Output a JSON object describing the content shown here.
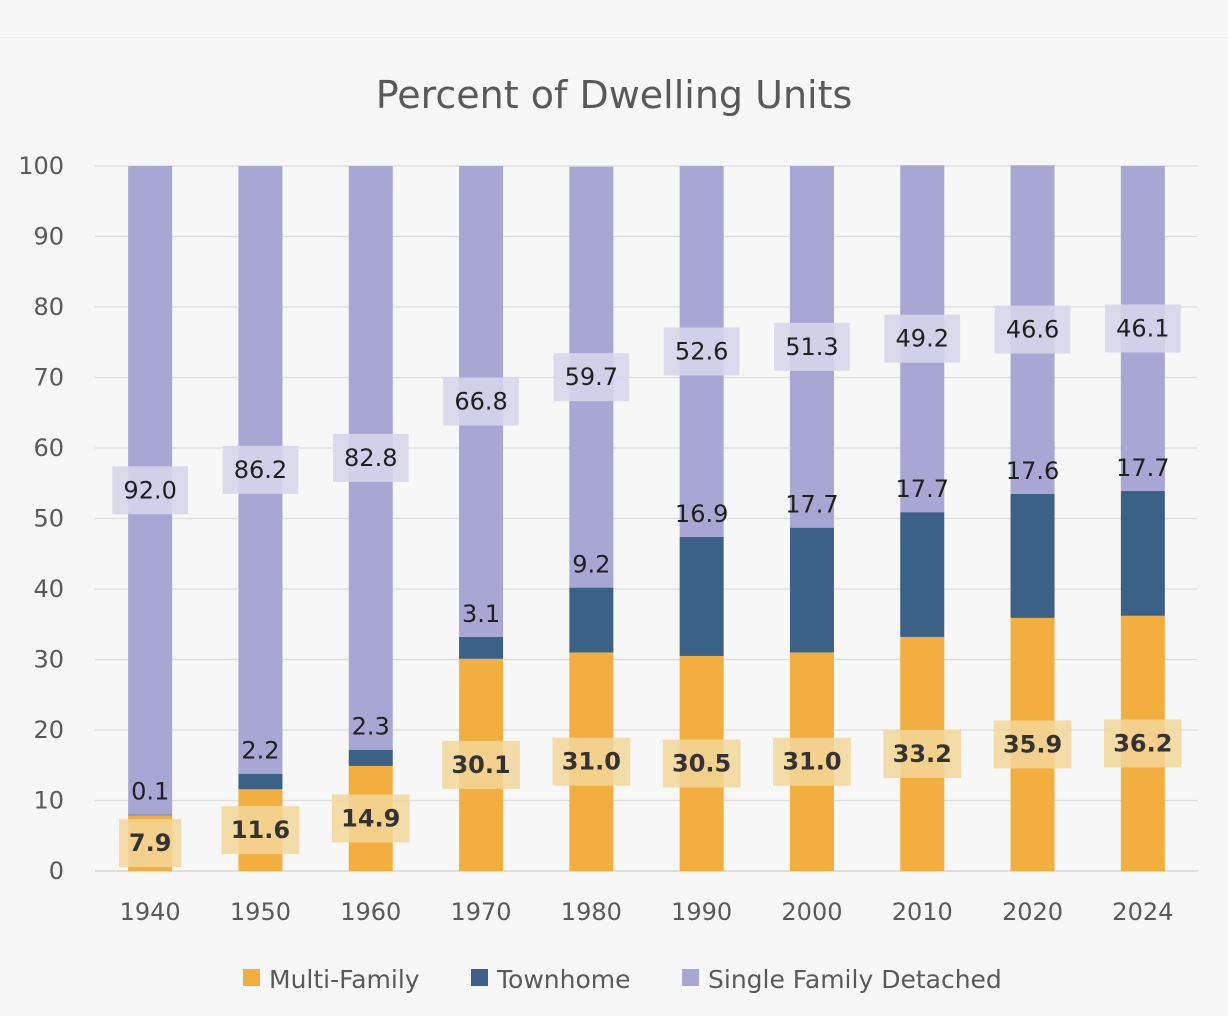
{
  "chart_data": {
    "type": "bar",
    "stacked": true,
    "title": "Percent of Dwelling Units",
    "xlabel": "",
    "ylabel": "",
    "ylim": [
      0,
      100
    ],
    "y_ticks": [
      0,
      10,
      20,
      30,
      40,
      50,
      60,
      70,
      80,
      90,
      100
    ],
    "y_tick_labels": [
      "0",
      "10",
      "20",
      "30",
      "40",
      "50",
      "60",
      "70",
      "80",
      "90",
      "100"
    ],
    "grid": true,
    "legend_position": "bottom",
    "categories": [
      "1940",
      "1950",
      "1960",
      "1970",
      "1980",
      "1990",
      "2000",
      "2010",
      "2020",
      "2024"
    ],
    "series": [
      {
        "name": "Multi-Family",
        "color": "#f2ae3f",
        "values": [
          7.9,
          11.6,
          14.9,
          30.1,
          31.0,
          30.5,
          31.0,
          33.2,
          35.9,
          36.2
        ],
        "labels": [
          "7.9",
          "11.6",
          "14.9",
          "30.1",
          "31.0",
          "30.5",
          "31.0",
          "33.2",
          "35.9",
          "36.2"
        ]
      },
      {
        "name": "Townhome",
        "color": "#3c6187",
        "values": [
          0.1,
          2.2,
          2.3,
          3.1,
          9.2,
          16.9,
          17.7,
          17.7,
          17.6,
          17.7
        ],
        "labels": [
          "0.1",
          "2.2",
          "2.3",
          "3.1",
          "9.2",
          "16.9",
          "17.7",
          "17.7",
          "17.6",
          "17.7"
        ]
      },
      {
        "name": "Single Family Detached",
        "color": "#a8a6d3",
        "values": [
          92.0,
          86.2,
          82.8,
          66.8,
          59.7,
          52.6,
          51.3,
          49.2,
          46.6,
          46.1
        ],
        "labels": [
          "92.0",
          "86.2",
          "82.8",
          "66.8",
          "59.7",
          "52.6",
          "51.3",
          "49.2",
          "46.6",
          "46.1"
        ]
      }
    ],
    "legend": [
      "Multi-Family",
      "Townhome",
      "Single Family Detached"
    ]
  }
}
